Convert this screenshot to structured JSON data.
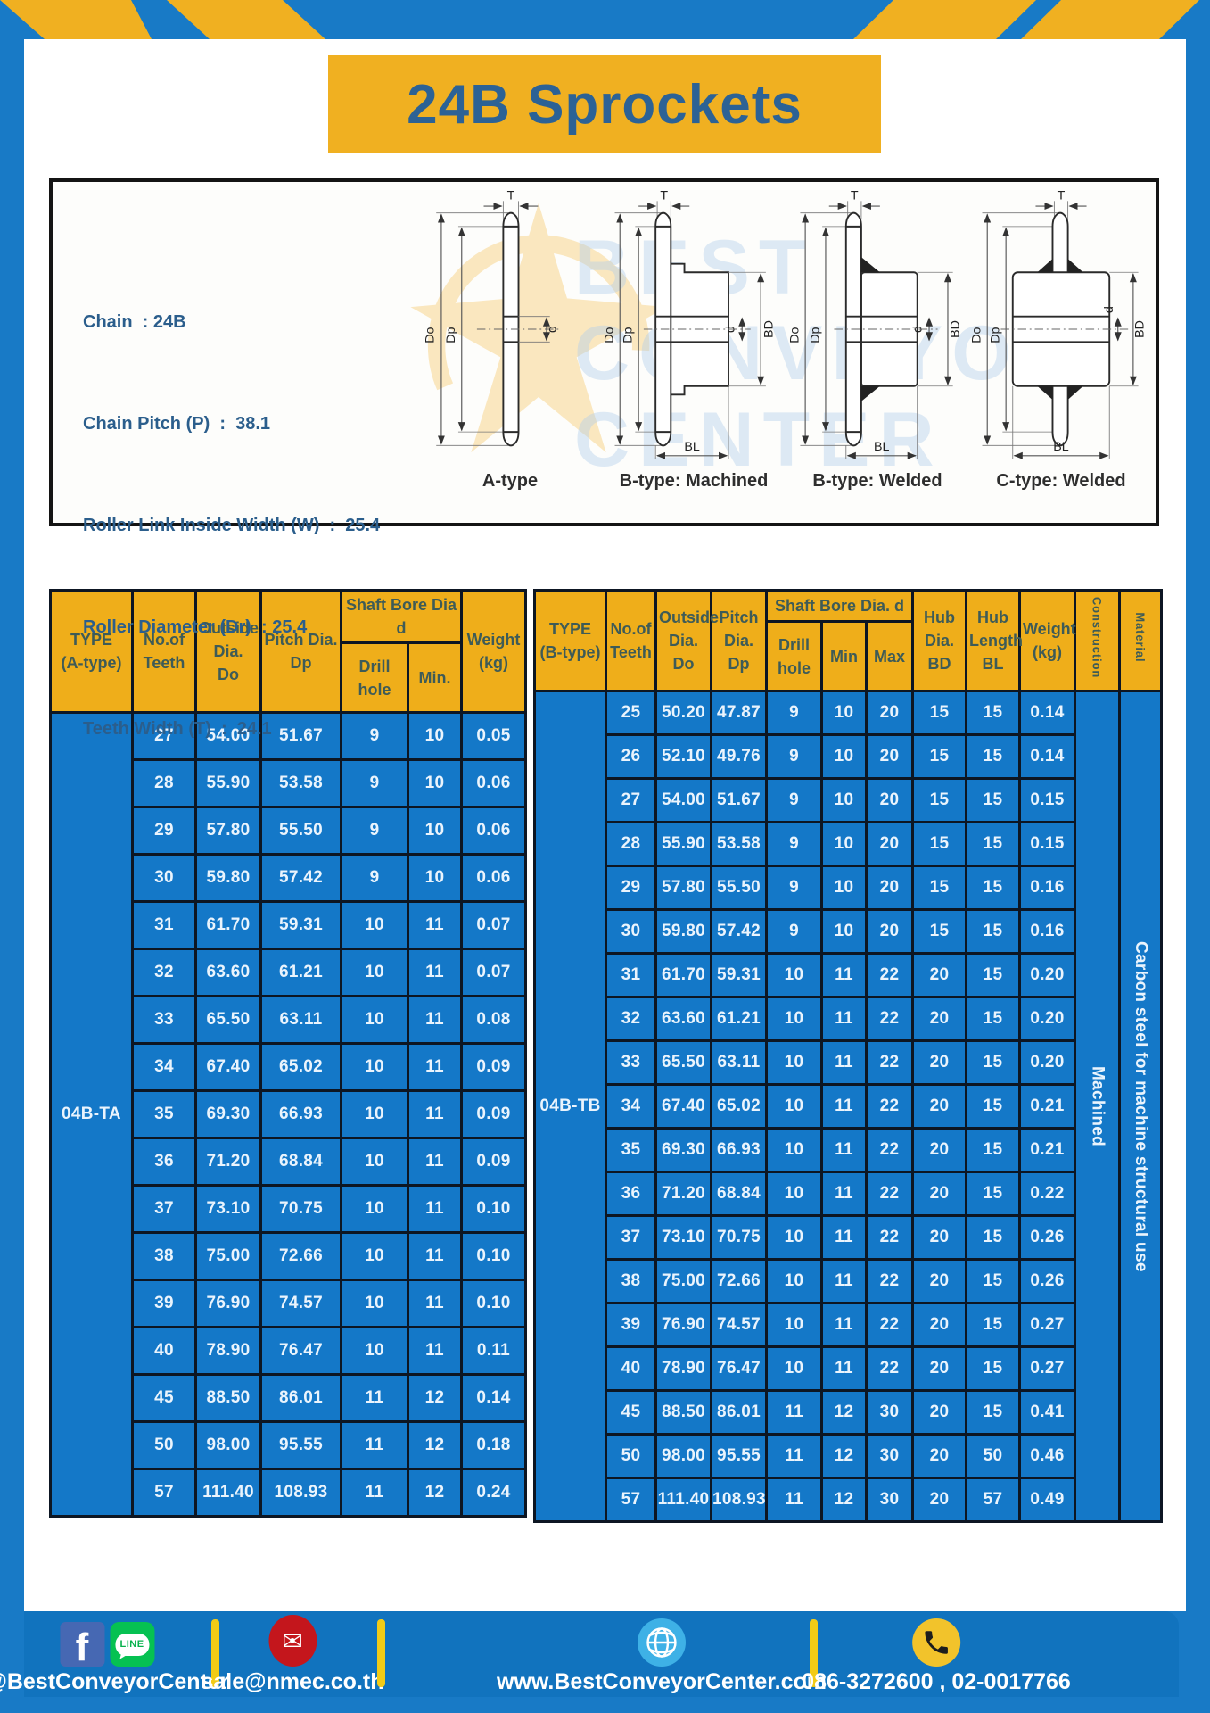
{
  "title": "24B Sprockets",
  "colors": {
    "frame_blue": "#187AC6",
    "footer_blue": "#1173BE",
    "table_cell_blue": "#1478C8",
    "header_yellow": "#EFAE1A",
    "banner_yellow": "#F0B021",
    "divider_yellow": "#F2CB16"
  },
  "specs": [
    "Chain  : 24B",
    "Chain Pitch (P)  :  38.1",
    "Roller Link Inside Width (W)  :  25.4",
    "Roller Diameter (Dr)  : 25.4",
    "Teeth Width (T)  :  24.1"
  ],
  "diagram": {
    "captions": [
      "A-type",
      "B-type: Machined",
      "B-type: Welded",
      "C-type: Welded"
    ],
    "dims": {
      "t": "T",
      "outer": "Do",
      "pitch": "Dp",
      "bore": "d",
      "hub": "BD",
      "hub_len": "BL"
    },
    "watermark_lines": [
      "BEST",
      "CONVEYOR",
      "CENTER"
    ]
  },
  "tables": {
    "left": {
      "type_label": "04B-TA",
      "headers": {
        "type": "TYPE\n(A-type)",
        "teeth": "No.of\nTeeth",
        "outside": "Outside\nDia.\nDo",
        "pitch": "Pitch Dia.\nDp",
        "shaft_bore": "Shaft Bore Dia d",
        "drill": "Drill hole",
        "min": "Min.",
        "weight": "Weight\n(kg)"
      },
      "rows": [
        [
          "27",
          "54.00",
          "51.67",
          "9",
          "10",
          "0.05"
        ],
        [
          "28",
          "55.90",
          "53.58",
          "9",
          "10",
          "0.06"
        ],
        [
          "29",
          "57.80",
          "55.50",
          "9",
          "10",
          "0.06"
        ],
        [
          "30",
          "59.80",
          "57.42",
          "9",
          "10",
          "0.06"
        ],
        [
          "31",
          "61.70",
          "59.31",
          "10",
          "11",
          "0.07"
        ],
        [
          "32",
          "63.60",
          "61.21",
          "10",
          "11",
          "0.07"
        ],
        [
          "33",
          "65.50",
          "63.11",
          "10",
          "11",
          "0.08"
        ],
        [
          "34",
          "67.40",
          "65.02",
          "10",
          "11",
          "0.09"
        ],
        [
          "35",
          "69.30",
          "66.93",
          "10",
          "11",
          "0.09"
        ],
        [
          "36",
          "71.20",
          "68.84",
          "10",
          "11",
          "0.09"
        ],
        [
          "37",
          "73.10",
          "70.75",
          "10",
          "11",
          "0.10"
        ],
        [
          "38",
          "75.00",
          "72.66",
          "10",
          "11",
          "0.10"
        ],
        [
          "39",
          "76.90",
          "74.57",
          "10",
          "11",
          "0.10"
        ],
        [
          "40",
          "78.90",
          "76.47",
          "10",
          "11",
          "0.11"
        ],
        [
          "45",
          "88.50",
          "86.01",
          "11",
          "12",
          "0.14"
        ],
        [
          "50",
          "98.00",
          "95.55",
          "11",
          "12",
          "0.18"
        ],
        [
          "57",
          "111.40",
          "108.93",
          "11",
          "12",
          "0.24"
        ]
      ]
    },
    "right": {
      "type_label": "04B-TB",
      "construction": "Machined",
      "material": "Carbon steel for machine structural use",
      "headers": {
        "type": "TYPE\n(B-type)",
        "teeth": "No.of\nTeeth",
        "outside": "Outside\nDia.\nDo",
        "pitch": "Pitch\nDia.\nDp",
        "shaft_bore": "Shaft Bore Dia.  d",
        "drill": "Drill hole",
        "min": "Min",
        "max": "Max",
        "hub_dia": "Hub\nDia.\nBD",
        "hub_len": "Hub\nLength\nBL",
        "weight": "Weight\n(kg)",
        "construction": "Construction",
        "material": "Material"
      },
      "rows": [
        [
          "25",
          "50.20",
          "47.87",
          "9",
          "10",
          "20",
          "15",
          "15",
          "0.14"
        ],
        [
          "26",
          "52.10",
          "49.76",
          "9",
          "10",
          "20",
          "15",
          "15",
          "0.14"
        ],
        [
          "27",
          "54.00",
          "51.67",
          "9",
          "10",
          "20",
          "15",
          "15",
          "0.15"
        ],
        [
          "28",
          "55.90",
          "53.58",
          "9",
          "10",
          "20",
          "15",
          "15",
          "0.15"
        ],
        [
          "29",
          "57.80",
          "55.50",
          "9",
          "10",
          "20",
          "15",
          "15",
          "0.16"
        ],
        [
          "30",
          "59.80",
          "57.42",
          "9",
          "10",
          "20",
          "15",
          "15",
          "0.16"
        ],
        [
          "31",
          "61.70",
          "59.31",
          "10",
          "11",
          "22",
          "20",
          "15",
          "0.20"
        ],
        [
          "32",
          "63.60",
          "61.21",
          "10",
          "11",
          "22",
          "20",
          "15",
          "0.20"
        ],
        [
          "33",
          "65.50",
          "63.11",
          "10",
          "11",
          "22",
          "20",
          "15",
          "0.20"
        ],
        [
          "34",
          "67.40",
          "65.02",
          "10",
          "11",
          "22",
          "20",
          "15",
          "0.21"
        ],
        [
          "35",
          "69.30",
          "66.93",
          "10",
          "11",
          "22",
          "20",
          "15",
          "0.21"
        ],
        [
          "36",
          "71.20",
          "68.84",
          "10",
          "11",
          "22",
          "20",
          "15",
          "0.22"
        ],
        [
          "37",
          "73.10",
          "70.75",
          "10",
          "11",
          "22",
          "20",
          "15",
          "0.26"
        ],
        [
          "38",
          "75.00",
          "72.66",
          "10",
          "11",
          "22",
          "20",
          "15",
          "0.26"
        ],
        [
          "39",
          "76.90",
          "74.57",
          "10",
          "11",
          "22",
          "20",
          "15",
          "0.27"
        ],
        [
          "40",
          "78.90",
          "76.47",
          "10",
          "11",
          "22",
          "20",
          "15",
          "0.27"
        ],
        [
          "45",
          "88.50",
          "86.01",
          "11",
          "12",
          "30",
          "20",
          "15",
          "0.41"
        ],
        [
          "50",
          "98.00",
          "95.55",
          "11",
          "12",
          "30",
          "20",
          "50",
          "0.46"
        ],
        [
          "57",
          "111.40",
          "108.93",
          "11",
          "12",
          "30",
          "20",
          "57",
          "0.49"
        ]
      ]
    }
  },
  "footer": {
    "facebook_glyph": "f",
    "line_text": "LINE",
    "email_glyph": "✉",
    "sections": [
      {
        "label": "@BestConveyorCenter"
      },
      {
        "label": "sale@nmec.co.th"
      },
      {
        "label": "www.BestConveyorCenter.com"
      },
      {
        "label": "086-3272600 , 02-0017766"
      }
    ]
  }
}
